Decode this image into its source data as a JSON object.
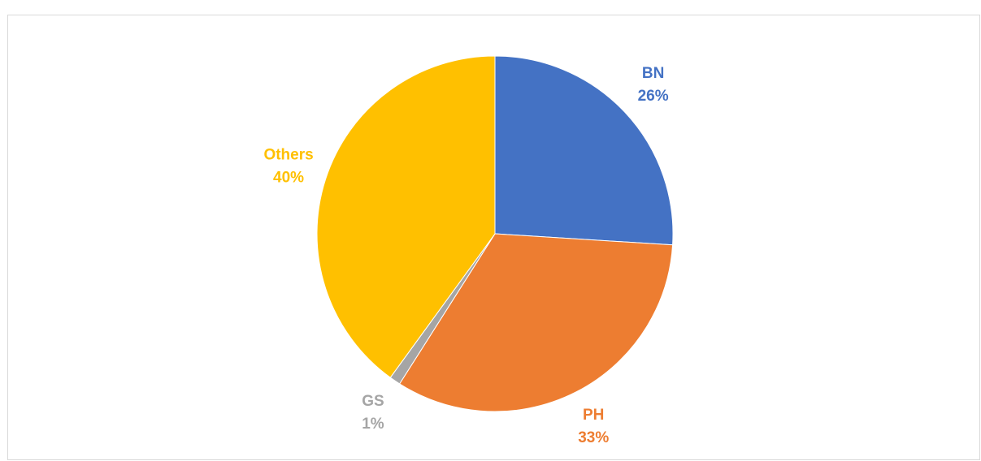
{
  "chart_data": {
    "type": "pie",
    "categories": [
      "BN",
      "PH",
      "GS",
      "Others"
    ],
    "values": [
      26,
      33,
      1,
      40
    ],
    "value_labels": [
      "26%",
      "33%",
      "1%",
      "40%"
    ],
    "colors": [
      "#4472c4",
      "#ed7d31",
      "#a5a5a5",
      "#ffc000"
    ]
  }
}
